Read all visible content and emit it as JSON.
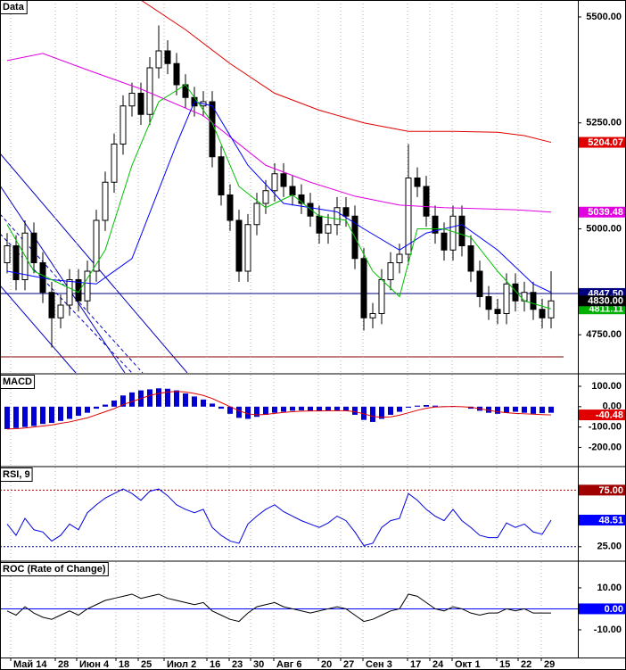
{
  "chart_data": [
    {
      "type": "candlestick",
      "title": "Data",
      "open": [
        4920,
        4960,
        4880,
        4990,
        4920,
        4850,
        4790,
        4820,
        4880,
        4830,
        4900,
        5020,
        5110,
        5200,
        5290,
        5320,
        5270,
        5380,
        5420,
        5390,
        5340,
        5310,
        5290,
        5300,
        5170,
        5080,
        5020,
        4900,
        5010,
        5060,
        5090,
        5130,
        5100,
        5080,
        5060,
        5030,
        4990,
        5010,
        5050,
        5030,
        4930,
        4790,
        4800,
        4880,
        4920,
        4940,
        5120,
        5100,
        5030,
        4990,
        4950,
        5030,
        4960,
        4900,
        4840,
        4810,
        4800,
        4870,
        4830,
        4850,
        4810,
        4790
      ],
      "high": [
        4990,
        4985,
        5020,
        5015,
        4945,
        4875,
        4845,
        4905,
        4905,
        4925,
        5045,
        5135,
        5225,
        5315,
        5345,
        5345,
        5405,
        5480,
        5445,
        5415,
        5365,
        5335,
        5325,
        5325,
        5195,
        5105,
        5045,
        5035,
        5085,
        5115,
        5155,
        5155,
        5125,
        5105,
        5085,
        5055,
        5035,
        5075,
        5075,
        5055,
        4955,
        4825,
        4905,
        4945,
        4965,
        5200,
        5145,
        5125,
        5055,
        5015,
        5055,
        5055,
        4985,
        4925,
        4865,
        4835,
        4895,
        4895,
        4875,
        4875,
        4835,
        4900
      ],
      "low": [
        4895,
        4855,
        4855,
        4895,
        4825,
        4720,
        4765,
        4795,
        4805,
        4805,
        4875,
        4995,
        5085,
        5175,
        5265,
        5245,
        5245,
        5355,
        5365,
        5315,
        5285,
        5265,
        5265,
        5145,
        5055,
        4995,
        4875,
        4875,
        4985,
        5035,
        5065,
        5075,
        5055,
        5035,
        5005,
        4965,
        4965,
        4985,
        5005,
        4905,
        4760,
        4765,
        4775,
        4855,
        4895,
        4915,
        5075,
        5005,
        4965,
        4925,
        4925,
        4935,
        4875,
        4815,
        4785,
        4775,
        4775,
        4805,
        4805,
        4785,
        4765,
        4765
      ],
      "close": [
        4960,
        4880,
        4990,
        4920,
        4850,
        4790,
        4820,
        4880,
        4830,
        4900,
        5020,
        5110,
        5200,
        5290,
        5320,
        5270,
        5380,
        5420,
        5390,
        5340,
        5310,
        5290,
        5300,
        5170,
        5080,
        5020,
        4900,
        5010,
        5060,
        5090,
        5130,
        5100,
        5080,
        5060,
        5030,
        4990,
        5010,
        5050,
        5030,
        4930,
        4790,
        4800,
        4880,
        4920,
        4940,
        5120,
        5100,
        5030,
        4990,
        4950,
        5030,
        4960,
        4900,
        4840,
        4810,
        4800,
        4870,
        4830,
        4850,
        4810,
        4790,
        4830
      ],
      "series": [
        {
          "color": "#e00000",
          "x": [
            15,
            20,
            25,
            30,
            35,
            40,
            45,
            50,
            55,
            58,
            61
          ],
          "values": [
            5540,
            5470,
            5390,
            5320,
            5280,
            5250,
            5230,
            5230,
            5228,
            5220,
            5204.07
          ]
        },
        {
          "color": "#e000e0",
          "x": [
            0,
            4,
            9,
            15,
            22,
            29,
            34,
            39,
            44,
            49,
            57,
            61
          ],
          "values": [
            5397,
            5414,
            5375,
            5330,
            5267,
            5150,
            5110,
            5077,
            5056,
            5050,
            5045,
            5039.48
          ]
        },
        {
          "color": "#0000ff",
          "x": [
            0,
            5,
            10,
            14,
            19,
            21,
            23,
            27,
            31,
            37,
            40,
            44,
            47,
            51,
            55,
            59,
            61
          ],
          "values": [
            4900,
            4880,
            4870,
            4930,
            5200,
            5300,
            5290,
            5150,
            5060,
            5040,
            5000,
            4950,
            4990,
            5010,
            4950,
            4870,
            4850
          ]
        },
        {
          "color": "#00c000",
          "x": [
            0,
            3,
            8,
            11,
            14,
            17,
            20,
            23,
            26,
            29,
            32,
            35,
            38,
            41,
            44,
            46,
            49,
            52,
            55,
            58,
            61
          ],
          "values": [
            5010,
            4900,
            4850,
            4950,
            5150,
            5300,
            5340,
            5250,
            5100,
            5050,
            5080,
            5030,
            5020,
            4900,
            4840,
            5000,
            5000,
            4980,
            4900,
            4830,
            4811.11
          ]
        }
      ],
      "ylim": [
        4660,
        5540
      ],
      "yticks": [
        {
          "value": 4750,
          "label": "4750.00"
        },
        {
          "value": 5000,
          "label": "5000.00"
        },
        {
          "value": 5250,
          "label": "5250.00"
        },
        {
          "value": 5500,
          "label": "5500.00"
        }
      ],
      "levels": [
        {
          "value": 4847.5,
          "label": "4847.50",
          "color": "#000080"
        }
      ],
      "tags": [
        {
          "value": 5204.07,
          "label": "5204.07",
          "color": "#e00000"
        },
        {
          "value": 5039.48,
          "label": "5039.48",
          "color": "#e000e0"
        },
        {
          "value": 4811.11,
          "label": "4811.11",
          "color": "#00b000"
        },
        {
          "value": 4830,
          "label": "4830.00",
          "color": "#000000"
        }
      ]
    },
    {
      "type": "combo",
      "title": "MACD",
      "series": [
        {
          "style": "bar",
          "color": "#0000d0",
          "values": [
            -110,
            -105,
            -100,
            -95,
            -85,
            -80,
            -70,
            -60,
            -45,
            -30,
            -10,
            10,
            30,
            55,
            70,
            80,
            85,
            90,
            88,
            80,
            65,
            50,
            35,
            15,
            -10,
            -35,
            -55,
            -60,
            -50,
            -40,
            -30,
            -25,
            -20,
            -18,
            -20,
            -22,
            -20,
            -18,
            -20,
            -40,
            -65,
            -75,
            -60,
            -40,
            -25,
            -5,
            5,
            8,
            5,
            2,
            3,
            0,
            -10,
            -20,
            -30,
            -35,
            -30,
            -25,
            -30,
            -35,
            -32,
            -30
          ]
        },
        {
          "style": "line",
          "color": "#e00000",
          "values": [
            -110,
            -108,
            -105,
            -100,
            -95,
            -90,
            -82,
            -75,
            -65,
            -55,
            -40,
            -25,
            -10,
            10,
            25,
            40,
            55,
            65,
            72,
            75,
            72,
            65,
            55,
            40,
            20,
            0,
            -20,
            -35,
            -40,
            -38,
            -33,
            -28,
            -25,
            -22,
            -21,
            -21,
            -20,
            -20,
            -20,
            -25,
            -35,
            -48,
            -52,
            -50,
            -42,
            -30,
            -18,
            -8,
            -2,
            0,
            1,
            0,
            -3,
            -10,
            -18,
            -25,
            -30,
            -33,
            -35,
            -37,
            -39,
            -40.48
          ]
        }
      ],
      "ylim": [
        -290,
        157
      ],
      "yticks": [
        {
          "value": -200,
          "label": "-200.00"
        },
        {
          "value": -100,
          "label": "-100.00"
        },
        {
          "value": 0,
          "label": "0.00"
        },
        {
          "value": 100,
          "label": "100.00"
        }
      ],
      "tags": [
        {
          "value": -40.48,
          "label": "-40.48",
          "color": "#e00000"
        }
      ]
    },
    {
      "type": "line",
      "title": "RSI, 9",
      "series": [
        {
          "color": "#0000e0",
          "values": [
            45,
            35,
            50,
            40,
            38,
            30,
            35,
            45,
            40,
            55,
            62,
            68,
            72,
            76,
            72,
            66,
            74,
            76,
            70,
            62,
            58,
            55,
            58,
            42,
            35,
            30,
            28,
            45,
            52,
            58,
            62,
            56,
            52,
            48,
            45,
            42,
            46,
            52,
            48,
            38,
            26,
            28,
            42,
            48,
            50,
            72,
            66,
            58,
            52,
            48,
            58,
            48,
            42,
            35,
            33,
            33,
            46,
            42,
            45,
            38,
            36,
            48.51
          ]
        }
      ],
      "ylim": [
        13,
        95
      ],
      "yticks": [
        {
          "value": 25,
          "label": "25.00"
        }
      ],
      "levels": [
        {
          "value": 75,
          "label": "75.00",
          "color": "#a00000",
          "dashed": true
        },
        {
          "value": 25,
          "color": "#000080",
          "dashed": true
        }
      ],
      "tags": [
        {
          "value": 48.51,
          "label": "48.51",
          "color": "#0000ff"
        }
      ]
    },
    {
      "type": "line",
      "title": "ROC (Rate of Change)",
      "series": [
        {
          "color": "#000000",
          "values": [
            -1,
            -3,
            1,
            -2,
            -4,
            -5,
            -3,
            -1,
            -3,
            0,
            2,
            4,
            5,
            6,
            7,
            5,
            6,
            7,
            5,
            4,
            3,
            2,
            3,
            -1,
            -3,
            -5,
            -6,
            -2,
            1,
            2,
            3,
            1,
            0,
            -1,
            -2,
            -1,
            0,
            1,
            0,
            -3,
            -6,
            -5,
            -3,
            -1,
            0,
            7,
            6,
            3,
            0,
            -1,
            1,
            0,
            -2,
            -3,
            -2,
            -2,
            0,
            -1,
            0,
            -2,
            -2,
            -1.97
          ]
        }
      ],
      "ylim": [
        -23.2,
        22.3
      ],
      "yticks": [
        {
          "value": -10,
          "label": "-10.00"
        },
        {
          "value": 10,
          "label": "10.00"
        }
      ],
      "levels": [
        {
          "value": 0,
          "label": "0.00",
          "color": "#0000ff"
        }
      ],
      "xticks": [
        {
          "value": 0.4,
          "label": "Май 14"
        },
        {
          "value": 5.4,
          "label": "28"
        },
        {
          "value": 7.8,
          "label": "Июн 4"
        },
        {
          "value": 12.2,
          "label": "18"
        },
        {
          "value": 14.7,
          "label": "25"
        },
        {
          "value": 17.6,
          "label": "Июл 2"
        },
        {
          "value": 22.4,
          "label": "16"
        },
        {
          "value": 24.9,
          "label": "23"
        },
        {
          "value": 27.3,
          "label": "30"
        },
        {
          "value": 29.9,
          "label": "Авг 6"
        },
        {
          "value": 34.9,
          "label": "20"
        },
        {
          "value": 37.4,
          "label": "27"
        },
        {
          "value": 39.9,
          "label": "Сен 3"
        },
        {
          "value": 44.9,
          "label": "17"
        },
        {
          "value": 47.4,
          "label": "24"
        },
        {
          "value": 49.9,
          "label": "Окт 1"
        },
        {
          "value": 54.9,
          "label": "15"
        },
        {
          "value": 57.3,
          "label": "22"
        },
        {
          "value": 59.9,
          "label": "29"
        }
      ]
    }
  ]
}
